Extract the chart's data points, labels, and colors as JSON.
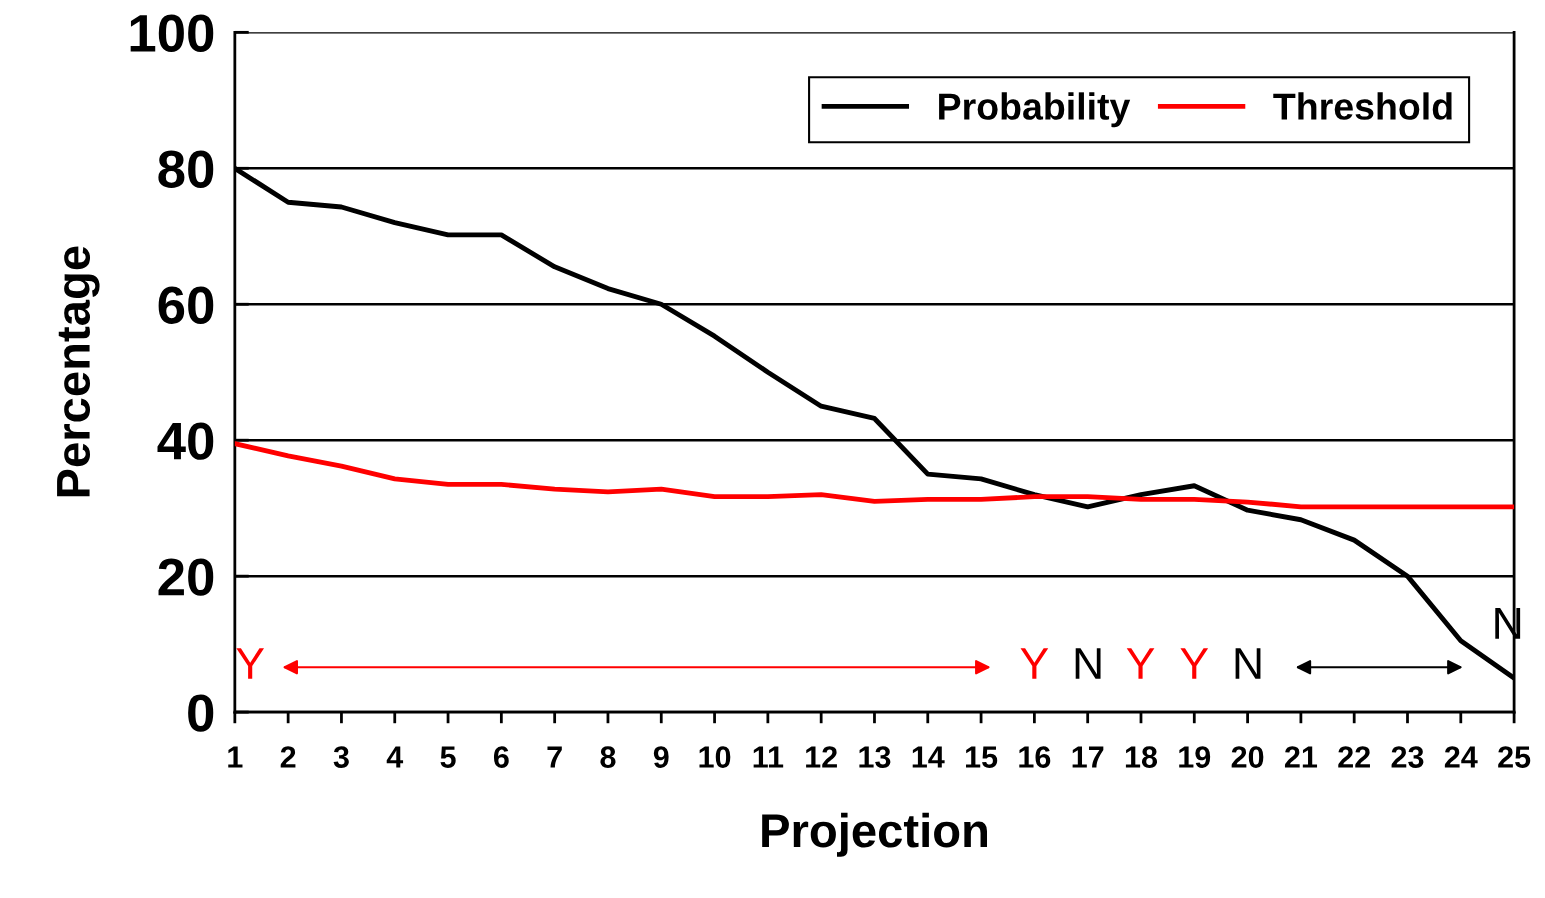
{
  "chart_data": {
    "type": "line",
    "xlabel": "Projection",
    "ylabel": "Percentage",
    "x": [
      1,
      2,
      3,
      4,
      5,
      6,
      7,
      8,
      9,
      10,
      11,
      12,
      13,
      14,
      15,
      16,
      17,
      18,
      19,
      20,
      21,
      22,
      23,
      24,
      25
    ],
    "series": [
      {
        "name": "Probability",
        "color": "#000000",
        "values": [
          80,
          75,
          74.3,
          72,
          70.2,
          70.2,
          65.5,
          62.3,
          60,
          55.3,
          50,
          45,
          43.2,
          35,
          34.3,
          32,
          30.2,
          32,
          33.3,
          29.7,
          28.3,
          25.3,
          20,
          10.5,
          5
        ]
      },
      {
        "name": "Threshold",
        "color": "#ff0000",
        "values": [
          39.5,
          37.7,
          36.2,
          34.3,
          33.5,
          33.5,
          32.8,
          32.4,
          32.8,
          31.7,
          31.7,
          32,
          31,
          31.3,
          31.3,
          31.7,
          31.7,
          31.3,
          31.3,
          30.9,
          30.2,
          30.2,
          30.2,
          30.2,
          30.2
        ]
      }
    ],
    "xlim": [
      1,
      25
    ],
    "xticks": [
      1,
      2,
      3,
      4,
      5,
      6,
      7,
      8,
      9,
      10,
      11,
      12,
      13,
      14,
      15,
      16,
      17,
      18,
      19,
      20,
      21,
      22,
      23,
      24,
      25
    ],
    "ylim": [
      0,
      100
    ],
    "yticks": [
      0,
      20,
      40,
      60,
      80,
      100
    ],
    "grid": "y",
    "legend": "top right",
    "marker": "none",
    "line_style": "solid",
    "annotations": [
      "Y",
      "Y",
      "N",
      "Y",
      "Y",
      "N",
      "N"
    ]
  }
}
